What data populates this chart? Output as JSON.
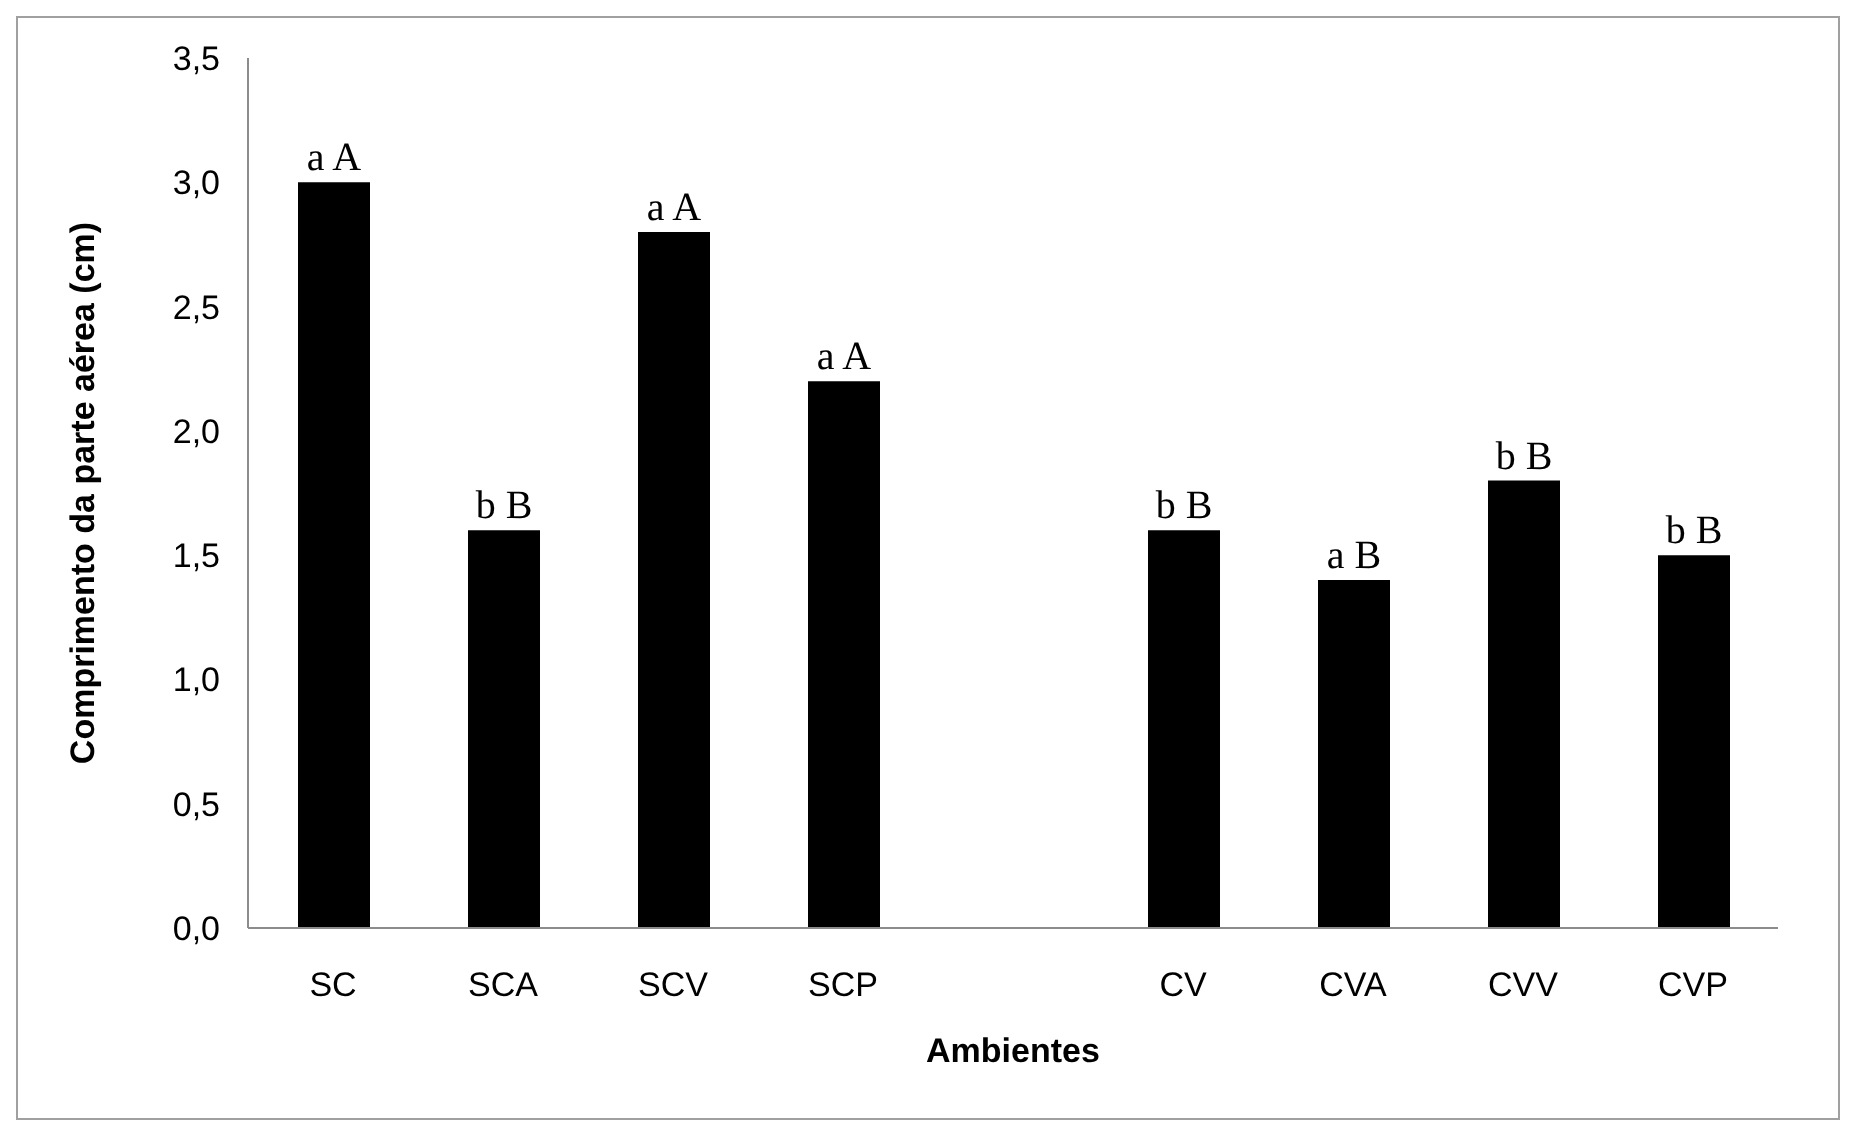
{
  "chart_data": {
    "type": "bar",
    "xlabel": "Ambientes",
    "ylabel": "Comprimento da parte aérea (cm)",
    "categories": [
      "SC",
      "SCA",
      "SCV",
      "SCP",
      null,
      "CV",
      "CVA",
      "CVV",
      "CVP"
    ],
    "values": [
      3.0,
      1.6,
      2.8,
      2.2,
      null,
      1.6,
      1.4,
      1.8,
      1.5
    ],
    "value_labels": [
      "a  A",
      "b B",
      "a A",
      "a A",
      null,
      "b B",
      "a B",
      "b B",
      "b B"
    ],
    "color": "#000000",
    "ylim": [
      0,
      3.5
    ],
    "yticks": [
      {
        "value": 0,
        "label": "0,0"
      },
      {
        "value": 0.5,
        "label": "0,5"
      },
      {
        "value": 1,
        "label": "1,0"
      },
      {
        "value": 1.5,
        "label": "1,5"
      },
      {
        "value": 2,
        "label": "2,0"
      },
      {
        "value": 2.5,
        "label": "2,5"
      },
      {
        "value": 3,
        "label": "3,0"
      },
      {
        "value": 3.5,
        "label": "3,5"
      }
    ],
    "grid": false
  }
}
